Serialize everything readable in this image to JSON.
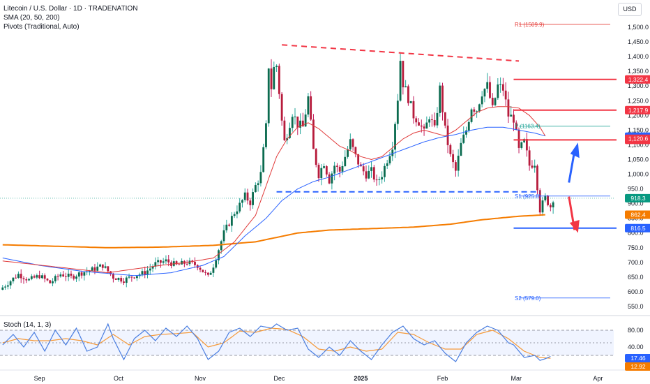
{
  "legend": {
    "title": "Litecoin / U.S. Dollar · 1D · TRADENATION",
    "sma": "SMA (20, 50, 200)",
    "pivots": "Pivots (Traditional, Auto)"
  },
  "currency": "USD",
  "stoch_legend": "Stoch (14, 1, 3)",
  "colors": {
    "up": "#26a69a",
    "up_body": "#0b6b4f",
    "down": "#c2185b",
    "down_body": "#b71c3c",
    "sma20": "#e03a3a",
    "sma50": "#2962ff",
    "sma200": "#f57c00",
    "pivot_line": "#e53935",
    "pivot_s1": "#2962ff",
    "stoch_k": "#4a7ee0",
    "stoch_d": "#f59a3a",
    "resistance": "#f23645",
    "support": "#2962ff"
  },
  "chart_data": [
    {
      "type": "candlestick",
      "title": "Litecoin / U.S. Dollar · 1D · TRADENATION",
      "ylim": [
        530,
        1530
      ],
      "y_ticks": [
        550,
        600,
        650,
        700,
        750,
        800,
        850,
        900,
        950,
        1000,
        1050,
        1100,
        1150,
        1200,
        1250,
        1300,
        1350,
        1400,
        1450,
        1500
      ],
      "y_tick_labels": [
        "550.0",
        "600.0",
        "650.0",
        "700.0",
        "750.0",
        "800.0",
        "850.0",
        "900.0",
        "950.0",
        "1,000.0",
        "1,050.0",
        "1,100.0",
        "1,150.0",
        "1,200.0",
        "1,250.0",
        "1,300.0",
        "1,350.0",
        "1,400.0",
        "1,450.0",
        "1,500.0"
      ],
      "x_labels": [
        {
          "label": "Sep",
          "day": 14
        },
        {
          "label": "Oct",
          "day": 44
        },
        {
          "label": "Nov",
          "day": 75
        },
        {
          "label": "Dec",
          "day": 105
        },
        {
          "label": "2025",
          "day": 136
        },
        {
          "label": "Feb",
          "day": 167
        },
        {
          "label": "Mar",
          "day": 195
        },
        {
          "label": "Apr",
          "day": 226
        }
      ],
      "candles_anchor_close": [
        [
          0,
          615
        ],
        [
          6,
          660
        ],
        [
          10,
          640
        ],
        [
          14,
          655
        ],
        [
          18,
          630
        ],
        [
          22,
          660
        ],
        [
          26,
          650
        ],
        [
          30,
          665
        ],
        [
          34,
          675
        ],
        [
          38,
          690
        ],
        [
          42,
          650
        ],
        [
          46,
          640
        ],
        [
          50,
          655
        ],
        [
          54,
          665
        ],
        [
          58,
          695
        ],
        [
          62,
          705
        ],
        [
          66,
          690
        ],
        [
          70,
          700
        ],
        [
          74,
          690
        ],
        [
          78,
          650
        ],
        [
          80,
          690
        ],
        [
          82,
          745
        ],
        [
          84,
          800
        ],
        [
          86,
          835
        ],
        [
          88,
          870
        ],
        [
          90,
          895
        ],
        [
          92,
          925
        ],
        [
          94,
          905
        ],
        [
          96,
          960
        ],
        [
          98,
          1000
        ],
        [
          100,
          1160
        ],
        [
          101,
          1370
        ],
        [
          102,
          1295
        ],
        [
          103,
          1360
        ],
        [
          104,
          1370
        ],
        [
          105,
          1280
        ],
        [
          106,
          1180
        ],
        [
          107,
          1110
        ],
        [
          108,
          1140
        ],
        [
          110,
          1210
        ],
        [
          112,
          1170
        ],
        [
          114,
          1160
        ],
        [
          116,
          1260
        ],
        [
          118,
          1080
        ],
        [
          120,
          1000
        ],
        [
          122,
          1040
        ],
        [
          124,
          980
        ],
        [
          126,
          1030
        ],
        [
          128,
          1010
        ],
        [
          130,
          1060
        ],
        [
          132,
          1110
        ],
        [
          134,
          1060
        ],
        [
          136,
          1020
        ],
        [
          138,
          1000
        ],
        [
          140,
          1010
        ],
        [
          142,
          970
        ],
        [
          144,
          1000
        ],
        [
          146,
          1050
        ],
        [
          148,
          1100
        ],
        [
          150,
          1260
        ],
        [
          151,
          1390
        ],
        [
          152,
          1310
        ],
        [
          154,
          1260
        ],
        [
          156,
          1200
        ],
        [
          158,
          1180
        ],
        [
          160,
          1140
        ],
        [
          162,
          1200
        ],
        [
          164,
          1150
        ],
        [
          166,
          1290
        ],
        [
          168,
          1150
        ],
        [
          170,
          1060
        ],
        [
          172,
          1010
        ],
        [
          174,
          1100
        ],
        [
          176,
          1150
        ],
        [
          178,
          1230
        ],
        [
          180,
          1220
        ],
        [
          182,
          1280
        ],
        [
          184,
          1300
        ],
        [
          186,
          1220
        ],
        [
          188,
          1300
        ],
        [
          190,
          1290
        ],
        [
          192,
          1200
        ],
        [
          194,
          1190
        ],
        [
          196,
          1080
        ],
        [
          198,
          1110
        ],
        [
          200,
          1030
        ],
        [
          202,
          1040
        ],
        [
          204,
          880
        ],
        [
          206,
          920
        ],
        [
          208,
          890
        ],
        [
          209,
          918
        ]
      ],
      "last_day_plotted": 209,
      "sma20_anchors": [
        [
          0,
          705
        ],
        [
          20,
          685
        ],
        [
          40,
          665
        ],
        [
          60,
          690
        ],
        [
          70,
          700
        ],
        [
          80,
          715
        ],
        [
          88,
          770
        ],
        [
          96,
          860
        ],
        [
          100,
          960
        ],
        [
          104,
          1060
        ],
        [
          108,
          1120
        ],
        [
          112,
          1160
        ],
        [
          116,
          1175
        ],
        [
          120,
          1155
        ],
        [
          124,
          1125
        ],
        [
          128,
          1095
        ],
        [
          132,
          1080
        ],
        [
          136,
          1060
        ],
        [
          140,
          1050
        ],
        [
          144,
          1060
        ],
        [
          148,
          1090
        ],
        [
          152,
          1120
        ],
        [
          156,
          1140
        ],
        [
          160,
          1150
        ],
        [
          164,
          1140
        ],
        [
          168,
          1130
        ],
        [
          172,
          1150
        ],
        [
          176,
          1180
        ],
        [
          180,
          1210
        ],
        [
          184,
          1225
        ],
        [
          188,
          1230
        ],
        [
          192,
          1230
        ],
        [
          196,
          1225
        ],
        [
          200,
          1200
        ],
        [
          204,
          1160
        ],
        [
          206,
          1130
        ]
      ],
      "sma50_anchors": [
        [
          0,
          715
        ],
        [
          14,
          690
        ],
        [
          30,
          670
        ],
        [
          50,
          655
        ],
        [
          64,
          665
        ],
        [
          76,
          690
        ],
        [
          84,
          720
        ],
        [
          92,
          790
        ],
        [
          100,
          850
        ],
        [
          106,
          910
        ],
        [
          112,
          950
        ],
        [
          118,
          975
        ],
        [
          124,
          990
        ],
        [
          130,
          1010
        ],
        [
          136,
          1030
        ],
        [
          142,
          1050
        ],
        [
          148,
          1070
        ],
        [
          154,
          1090
        ],
        [
          160,
          1110
        ],
        [
          166,
          1125
        ],
        [
          172,
          1135
        ],
        [
          178,
          1150
        ],
        [
          184,
          1160
        ],
        [
          190,
          1160
        ],
        [
          196,
          1150
        ],
        [
          202,
          1140
        ],
        [
          206,
          1130
        ]
      ],
      "sma200_anchors": [
        [
          0,
          760
        ],
        [
          20,
          755
        ],
        [
          40,
          750
        ],
        [
          60,
          752
        ],
        [
          80,
          758
        ],
        [
          96,
          770
        ],
        [
          104,
          785
        ],
        [
          112,
          800
        ],
        [
          124,
          810
        ],
        [
          140,
          815
        ],
        [
          156,
          820
        ],
        [
          170,
          830
        ],
        [
          182,
          845
        ],
        [
          190,
          852
        ],
        [
          196,
          857
        ],
        [
          202,
          860
        ],
        [
          206,
          862
        ]
      ],
      "pivots": [
        {
          "label": "R1 (1509.9)",
          "value": 1509.9,
          "kind": "resistance"
        },
        {
          "label": "P (1163.4)",
          "value": 1163.4,
          "kind": "pivot"
        },
        {
          "label": "S1 (925.8)",
          "value": 925.8,
          "kind": "support"
        },
        {
          "label": "S2 (579.0)",
          "value": 579.0,
          "kind": "support"
        }
      ],
      "horizontal_levels": [
        {
          "value": 1322.4,
          "label": "1,322.4",
          "color": "#f23645"
        },
        {
          "value": 1217.9,
          "label": "1,217.9",
          "color": "#f23645"
        },
        {
          "value": 1116.8,
          "label": "1,116.8",
          "color": "#f23645"
        },
        {
          "value": 816.5,
          "label": "816.5",
          "color": "#2962ff"
        }
      ],
      "price_labels": [
        {
          "value": 1127.6,
          "label": "1,127.6",
          "color": "#2962ff"
        },
        {
          "value": 1120.6,
          "label": "1,120.6",
          "color": "#f23645"
        },
        {
          "value": 918.3,
          "label": "918.3",
          "color": "#089981"
        },
        {
          "value": 862.4,
          "label": "862.4",
          "color": "#f57c00"
        }
      ],
      "trendline_descending": {
        "from": [
          106,
          1440
        ],
        "to": [
          196,
          1385
        ]
      },
      "breakout_line": {
        "from": [
          104,
          940
        ],
        "to": [
          204,
          940
        ]
      }
    },
    {
      "type": "line",
      "title": "Stoch (14, 1, 3)",
      "ylim": [
        0,
        100
      ],
      "y_ticks": [
        80,
        40
      ],
      "y_tick_labels": [
        "80.00",
        "40.00"
      ],
      "bands": [
        20,
        50,
        80
      ],
      "k_anchors": [
        [
          0,
          45
        ],
        [
          4,
          70
        ],
        [
          8,
          40
        ],
        [
          12,
          75
        ],
        [
          16,
          30
        ],
        [
          20,
          80
        ],
        [
          24,
          45
        ],
        [
          28,
          85
        ],
        [
          32,
          30
        ],
        [
          36,
          40
        ],
        [
          40,
          95
        ],
        [
          42,
          60
        ],
        [
          46,
          10
        ],
        [
          50,
          60
        ],
        [
          54,
          80
        ],
        [
          58,
          55
        ],
        [
          62,
          85
        ],
        [
          66,
          65
        ],
        [
          70,
          90
        ],
        [
          74,
          60
        ],
        [
          78,
          10
        ],
        [
          82,
          30
        ],
        [
          86,
          75
        ],
        [
          90,
          85
        ],
        [
          94,
          65
        ],
        [
          98,
          90
        ],
        [
          102,
          85
        ],
        [
          104,
          95
        ],
        [
          108,
          80
        ],
        [
          112,
          85
        ],
        [
          116,
          35
        ],
        [
          120,
          15
        ],
        [
          124,
          40
        ],
        [
          128,
          20
        ],
        [
          132,
          55
        ],
        [
          136,
          30
        ],
        [
          140,
          10
        ],
        [
          144,
          45
        ],
        [
          148,
          75
        ],
        [
          152,
          90
        ],
        [
          156,
          60
        ],
        [
          160,
          45
        ],
        [
          164,
          55
        ],
        [
          168,
          25
        ],
        [
          172,
          5
        ],
        [
          176,
          50
        ],
        [
          180,
          75
        ],
        [
          184,
          90
        ],
        [
          188,
          80
        ],
        [
          192,
          50
        ],
        [
          194,
          45
        ],
        [
          198,
          15
        ],
        [
          202,
          20
        ],
        [
          204,
          8
        ],
        [
          206,
          12
        ],
        [
          208,
          17.46
        ]
      ],
      "d_anchors": [
        [
          0,
          50
        ],
        [
          6,
          60
        ],
        [
          12,
          55
        ],
        [
          18,
          55
        ],
        [
          24,
          60
        ],
        [
          30,
          55
        ],
        [
          36,
          45
        ],
        [
          42,
          70
        ],
        [
          48,
          45
        ],
        [
          54,
          65
        ],
        [
          60,
          70
        ],
        [
          66,
          72
        ],
        [
          72,
          75
        ],
        [
          78,
          40
        ],
        [
          84,
          50
        ],
        [
          90,
          78
        ],
        [
          96,
          75
        ],
        [
          102,
          85
        ],
        [
          108,
          82
        ],
        [
          114,
          65
        ],
        [
          120,
          35
        ],
        [
          126,
          30
        ],
        [
          132,
          40
        ],
        [
          138,
          30
        ],
        [
          144,
          35
        ],
        [
          150,
          75
        ],
        [
          156,
          70
        ],
        [
          162,
          50
        ],
        [
          168,
          35
        ],
        [
          174,
          35
        ],
        [
          180,
          70
        ],
        [
          186,
          80
        ],
        [
          192,
          60
        ],
        [
          198,
          30
        ],
        [
          204,
          15
        ],
        [
          208,
          12.92
        ]
      ],
      "last_values": [
        {
          "label": "17.46",
          "value": 17.46,
          "color": "#2962ff"
        },
        {
          "label": "12.92",
          "value": 12.92,
          "color": "#f57c00"
        }
      ]
    }
  ]
}
